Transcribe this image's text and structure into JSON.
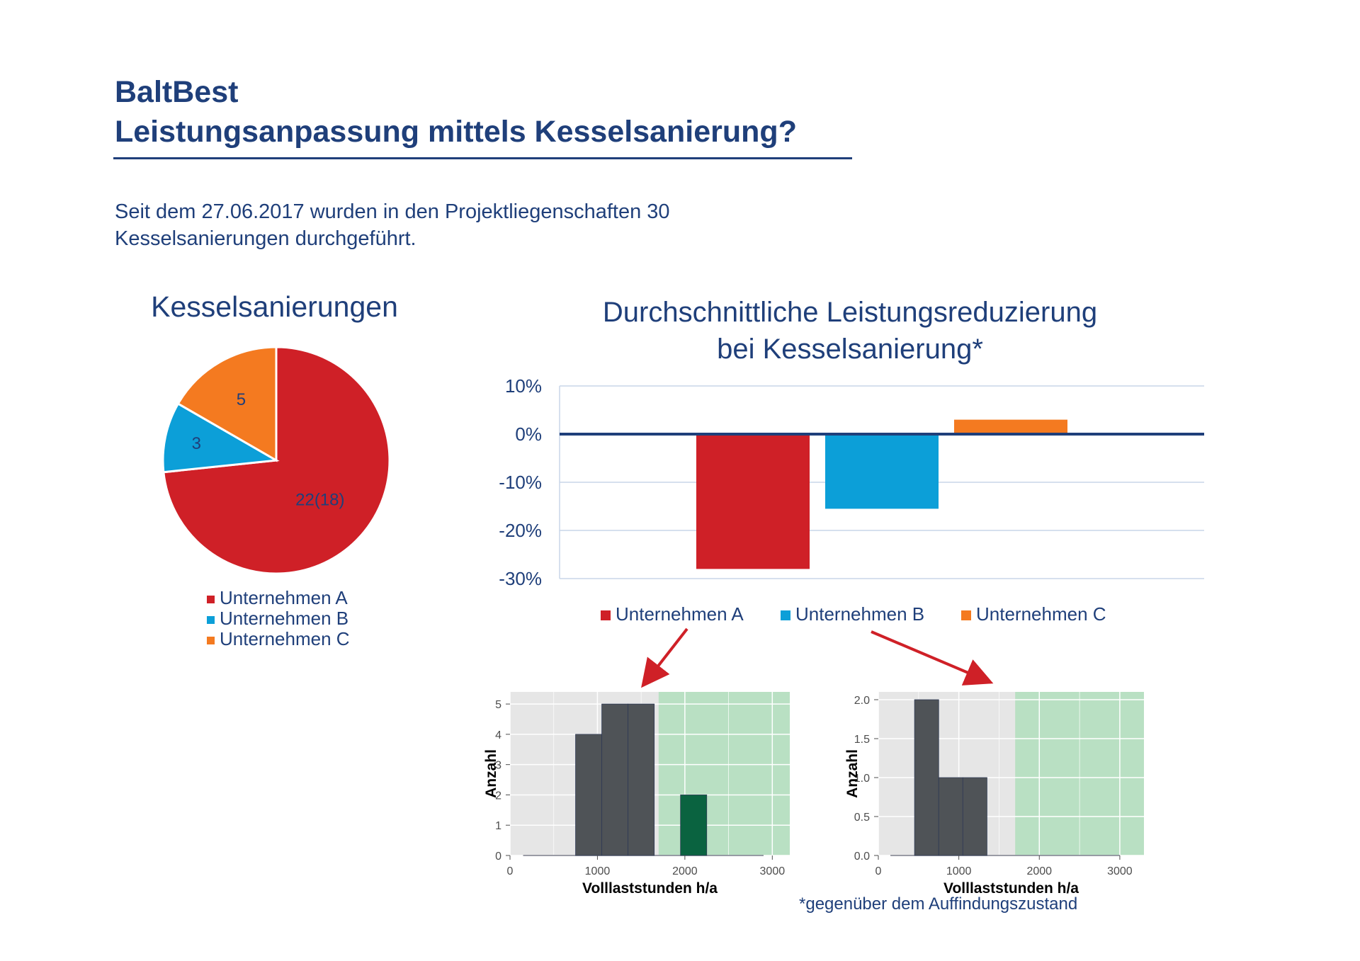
{
  "header": {
    "title_line1": "BaltBest",
    "title_line2": "Leistungsanpassung mittels Kesselsanierung?"
  },
  "intro": {
    "line1": "Seit dem 27.06.2017 wurden in den Projektliegenschaften 30",
    "line2": "Kesselsanierungen durchgeführt."
  },
  "footnote": "*gegenüber dem Auffindungszustand",
  "colors": {
    "A": "#cf2027",
    "B": "#0c9fd8",
    "C": "#f47a20",
    "text": "#1f3f7a",
    "axis": "#1f3f7a",
    "gridline": "#c9d6e8"
  },
  "chart_data": [
    {
      "type": "pie",
      "title": "Kesselsanierungen",
      "categories": [
        "Unternehmen A",
        "Unternehmen B",
        "Unternehmen C"
      ],
      "values": [
        22,
        3,
        5
      ],
      "data_labels": [
        "22(18)",
        "3",
        "5"
      ],
      "legend": "bottom"
    },
    {
      "type": "bar",
      "title_line1": "Durchschnittliche Leistungsreduzierung",
      "title_line2": "bei Kesselsanierung*",
      "categories": [
        "Unternehmen A",
        "Unternehmen B",
        "Unternehmen C"
      ],
      "values": [
        -28,
        -15.5,
        3
      ],
      "ylim": [
        -30,
        10
      ],
      "yticks": [
        10,
        0,
        -10,
        -20,
        -30
      ],
      "ytick_labels": [
        "10%",
        "0%",
        "-10%",
        "-20%",
        "-30%"
      ],
      "grid": true,
      "legend": "bottom"
    },
    {
      "type": "bar",
      "xlabel": "Volllaststunden h/a",
      "ylabel": "Anzahl",
      "xlim": [
        0,
        3200
      ],
      "ylim": [
        0,
        5.4
      ],
      "xticks": [
        0,
        1000,
        2000,
        3000
      ],
      "yticks": [
        0,
        1,
        2,
        3,
        4,
        5
      ],
      "ytick_labels": [
        "0",
        "1",
        "2",
        "3",
        "4",
        "5"
      ],
      "highlight_range": [
        1700,
        3200
      ],
      "bins": [
        {
          "x0": 750,
          "x1": 1050,
          "count": 4,
          "highlight": false
        },
        {
          "x0": 1050,
          "x1": 1350,
          "count": 5,
          "highlight": false
        },
        {
          "x0": 1350,
          "x1": 1650,
          "count": 5,
          "highlight": false
        },
        {
          "x0": 1950,
          "x1": 2250,
          "count": 2,
          "highlight": true
        }
      ],
      "baseline_range": [
        150,
        2900
      ]
    },
    {
      "type": "bar",
      "xlabel": "Volllaststunden h/a",
      "ylabel": "Anzahl",
      "xlim": [
        0,
        3300
      ],
      "ylim": [
        0,
        2.1
      ],
      "xticks": [
        0,
        1000,
        2000,
        3000
      ],
      "yticks": [
        0,
        0.5,
        1,
        1.5,
        2
      ],
      "ytick_labels": [
        "0.0",
        "0.5",
        "1.0",
        "1.5",
        "2.0"
      ],
      "highlight_range": [
        1700,
        3300
      ],
      "bins": [
        {
          "x0": 450,
          "x1": 750,
          "count": 2,
          "highlight": false
        },
        {
          "x0": 750,
          "x1": 1050,
          "count": 1,
          "highlight": false
        },
        {
          "x0": 1050,
          "x1": 1350,
          "count": 1,
          "highlight": false
        }
      ],
      "baseline_range": [
        150,
        3000
      ]
    }
  ]
}
